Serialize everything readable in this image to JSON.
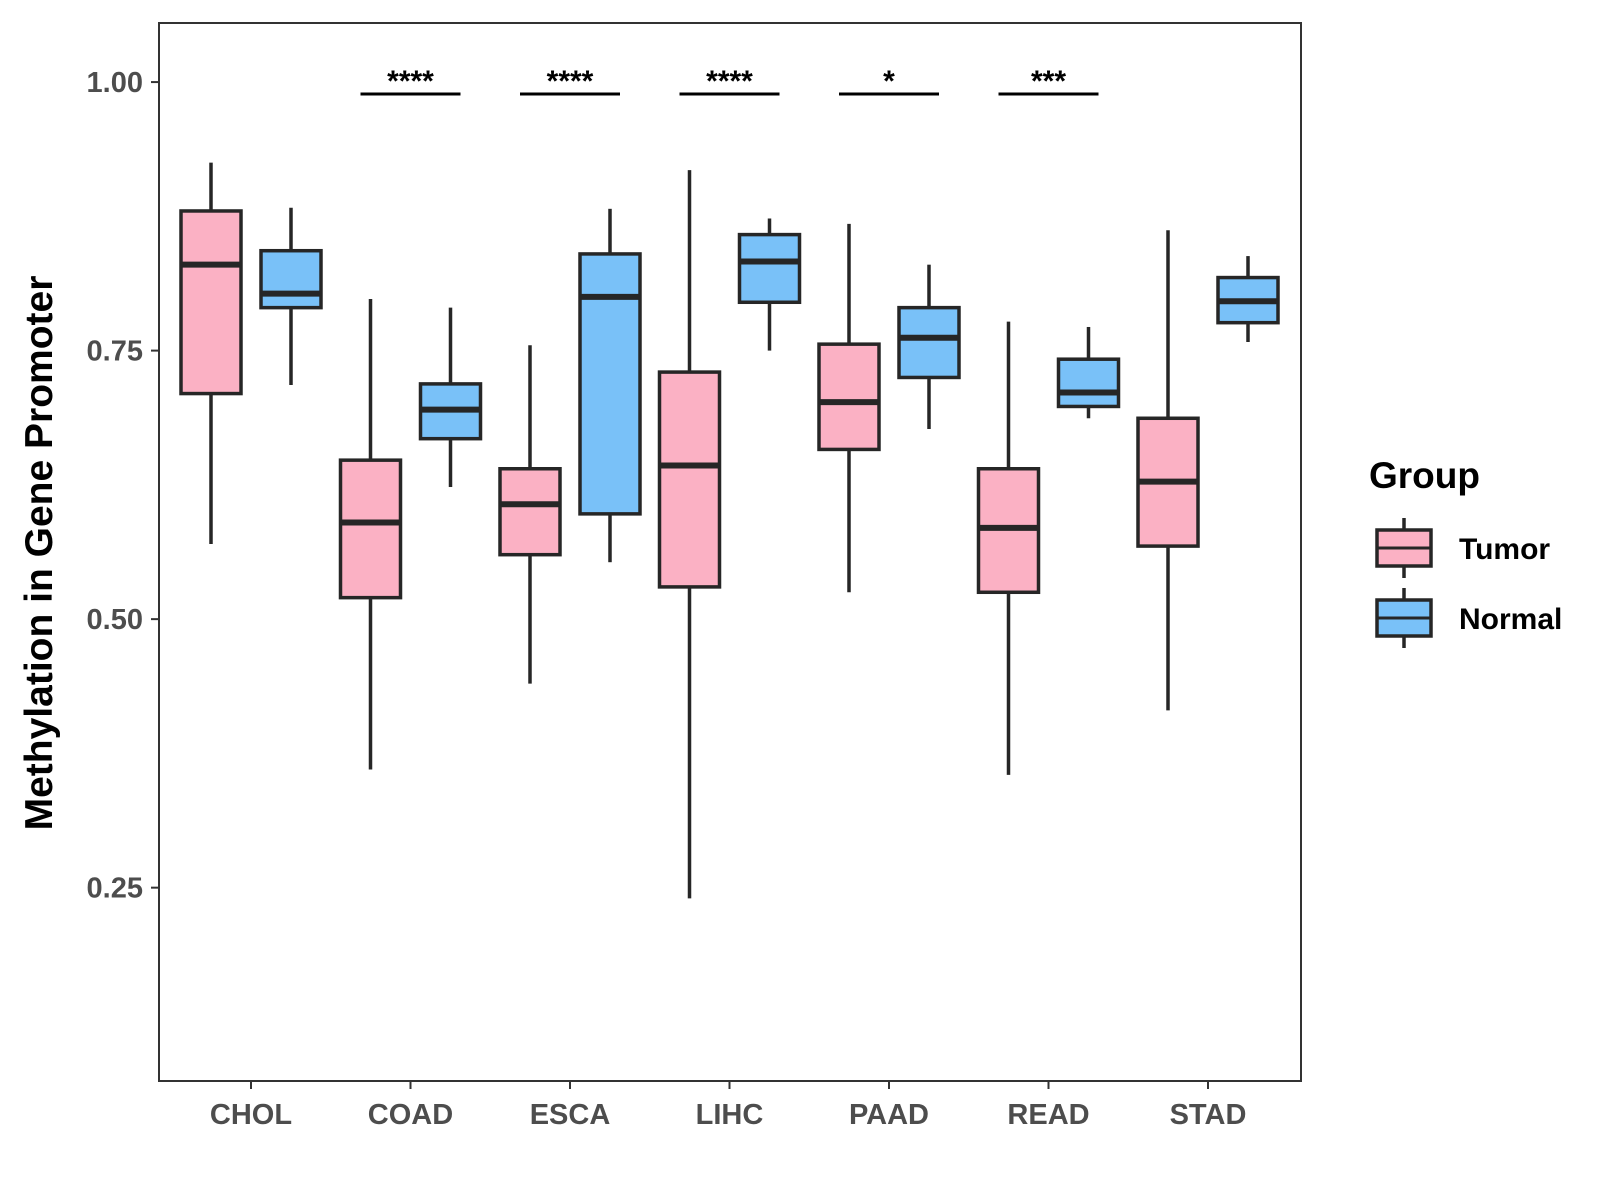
{
  "chart_data": {
    "type": "boxplot",
    "ylabel": "Methylation in Gene Promoter",
    "xlabel": "",
    "ylim": [
      0.07,
      1.055
    ],
    "yticks": [
      "0.25",
      "0.50",
      "0.75",
      "1.00"
    ],
    "categories": [
      "CHOL",
      "COAD",
      "ESCA",
      "LIHC",
      "PAAD",
      "READ",
      "STAD"
    ],
    "legend": {
      "title": "Group",
      "position": "right",
      "entries": [
        "Tumor",
        "Normal"
      ]
    },
    "series": [
      {
        "name": "Tumor",
        "color": "#FBB1C4",
        "boxes": [
          {
            "min": 0.57,
            "q1": 0.71,
            "median": 0.83,
            "q3": 0.88,
            "max": 0.925
          },
          {
            "min": 0.36,
            "q1": 0.52,
            "median": 0.59,
            "q3": 0.648,
            "max": 0.798
          },
          {
            "min": 0.44,
            "q1": 0.56,
            "median": 0.607,
            "q3": 0.64,
            "max": 0.755
          },
          {
            "min": 0.24,
            "q1": 0.53,
            "median": 0.643,
            "q3": 0.73,
            "max": 0.918
          },
          {
            "min": 0.525,
            "q1": 0.658,
            "median": 0.702,
            "q3": 0.756,
            "max": 0.868
          },
          {
            "min": 0.355,
            "q1": 0.525,
            "median": 0.585,
            "q3": 0.64,
            "max": 0.777
          },
          {
            "min": 0.415,
            "q1": 0.568,
            "median": 0.628,
            "q3": 0.687,
            "max": 0.862
          }
        ]
      },
      {
        "name": "Normal",
        "color": "#79C1F8",
        "boxes": [
          {
            "min": 0.718,
            "q1": 0.79,
            "median": 0.803,
            "q3": 0.843,
            "max": 0.883
          },
          {
            "min": 0.623,
            "q1": 0.668,
            "median": 0.695,
            "q3": 0.719,
            "max": 0.79
          },
          {
            "min": 0.553,
            "q1": 0.598,
            "median": 0.8,
            "q3": 0.84,
            "max": 0.882
          },
          {
            "min": 0.75,
            "q1": 0.795,
            "median": 0.833,
            "q3": 0.858,
            "max": 0.873
          },
          {
            "min": 0.677,
            "q1": 0.725,
            "median": 0.762,
            "q3": 0.79,
            "max": 0.83
          },
          {
            "min": 0.687,
            "q1": 0.698,
            "median": 0.711,
            "q3": 0.742,
            "max": 0.772
          },
          {
            "min": 0.758,
            "q1": 0.776,
            "median": 0.796,
            "q3": 0.818,
            "max": 0.838
          }
        ]
      }
    ],
    "significance": [
      {
        "category": "COAD",
        "label": "****"
      },
      {
        "category": "ESCA",
        "label": "****"
      },
      {
        "category": "LIHC",
        "label": "****"
      },
      {
        "category": "PAAD",
        "label": "*"
      },
      {
        "category": "READ",
        "label": "***"
      }
    ],
    "grid": false
  }
}
